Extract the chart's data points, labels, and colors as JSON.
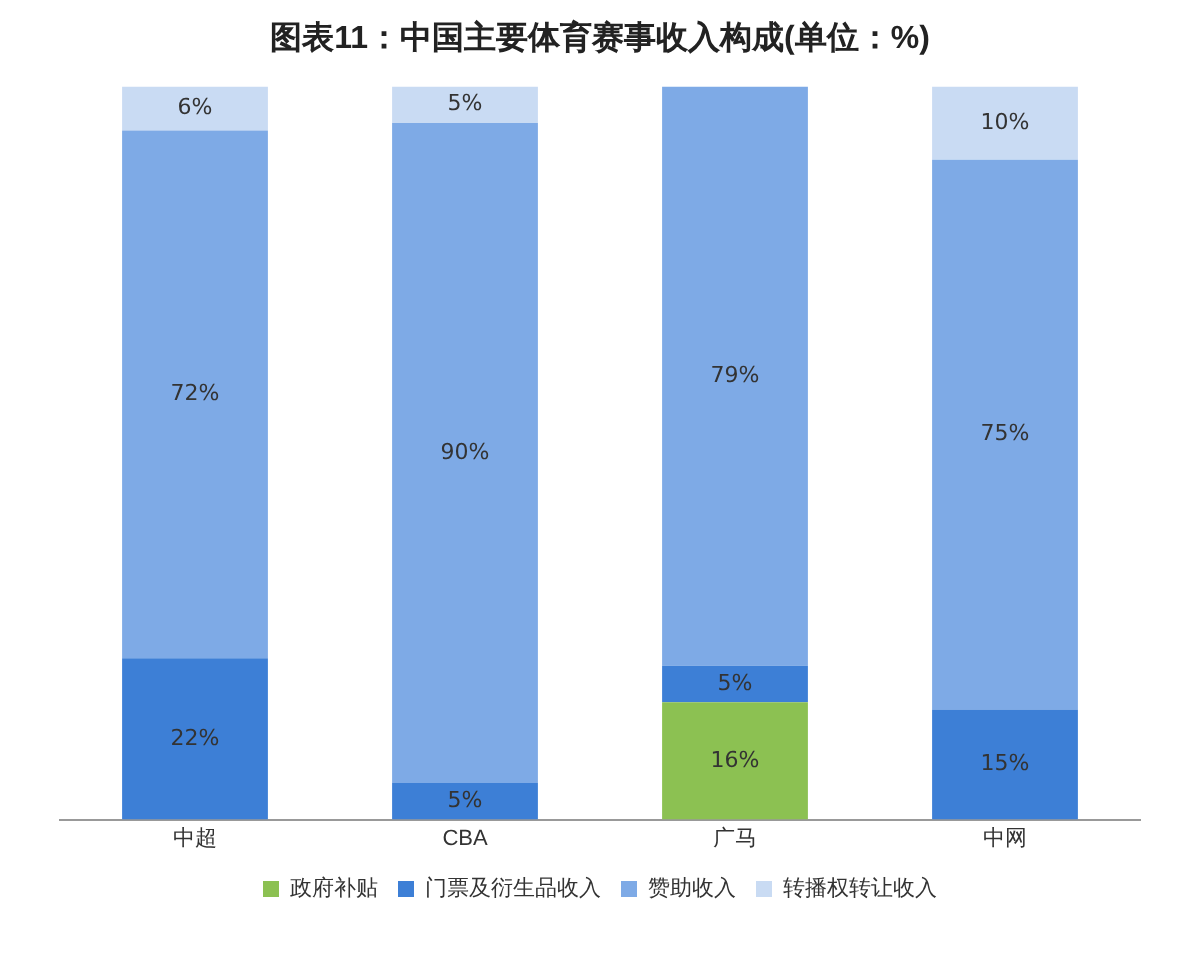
{
  "chart_data": {
    "type": "bar",
    "title": "图表11：中国主要体育赛事收入构成(单位：%)",
    "categories": [
      "中超",
      "CBA",
      "广马",
      "中网"
    ],
    "stacked": true,
    "legend": "bottom",
    "grid": false,
    "series": [
      {
        "name": "政府补贴",
        "color": "#8cc152",
        "values": [
          0,
          0,
          16,
          0
        ],
        "value_labels": [
          null,
          null,
          "16%",
          null
        ]
      },
      {
        "name": "门票及衍生品收入",
        "color": "#3d7fd6",
        "values": [
          22,
          5,
          5,
          15
        ],
        "value_labels": [
          "22%",
          "5%",
          "5%",
          "15%"
        ]
      },
      {
        "name": "赞助收入",
        "color": "#7eaae6",
        "values": [
          72,
          90,
          79,
          75
        ],
        "value_labels": [
          "72%",
          "90%",
          "79%",
          "75%"
        ]
      },
      {
        "name": "转播权转让收入",
        "color": "#c9dbf3",
        "values": [
          6,
          5,
          0,
          10
        ],
        "value_labels": [
          "6%",
          "5%",
          null,
          "10%"
        ]
      }
    ]
  }
}
